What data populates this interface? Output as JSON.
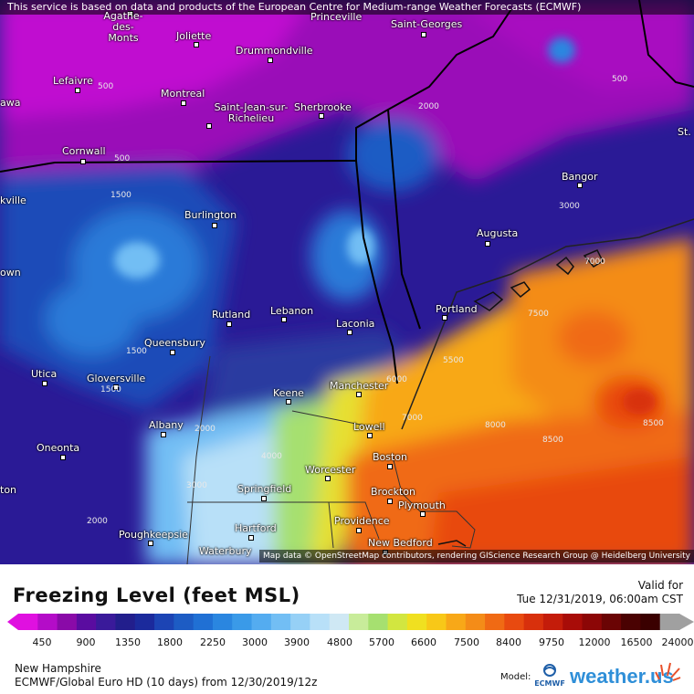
{
  "header": {
    "attribution": "This service is based on data and products of the European Centre for Medium-range Weather Forecasts (ECMWF)"
  },
  "map": {
    "attribution": "Map data © OpenStreetMap contributors, rendering GIScience Research Group @ Heidelberg University",
    "cities": [
      "Agathe-des-Monts",
      "Joliette",
      "Princeville",
      "Saint-Georges",
      "Drummondville",
      "Lefaivre",
      "Montreal",
      "Saint-Jean-sur-Richelieu",
      "Sherbrooke",
      "Cornwall",
      "Bangor",
      "Burlington",
      "Augusta",
      "Rutland",
      "Lebanon",
      "Laconia",
      "Portland",
      "Queensbury",
      "Utica",
      "Gloversville",
      "Keene",
      "Manchester",
      "Albany",
      "Lowell",
      "Oneonta",
      "Boston",
      "Worcester",
      "Springfield",
      "Brockton",
      "Plymouth",
      "Hartford",
      "Providence",
      "Poughkeepsie",
      "Waterbury",
      "New Bedford",
      "awa",
      "kville",
      "own",
      "ton",
      "St."
    ],
    "contour_labels": [
      "500",
      "500",
      "1500",
      "2000",
      "1500",
      "1500",
      "3000",
      "4000",
      "6000",
      "5500",
      "7000",
      "7500",
      "7000",
      "8000",
      "8500",
      "8500",
      "2000",
      "3000",
      "2000",
      "500"
    ]
  },
  "legend": {
    "title": "Freezing Level (feet MSL)",
    "valid_label": "Valid for",
    "valid_time": "Tue 12/31/2019, 06:00am CST",
    "ticks": [
      "450",
      "900",
      "1350",
      "1800",
      "2250",
      "3000",
      "3900",
      "4800",
      "5700",
      "6600",
      "7500",
      "8400",
      "9750",
      "12000",
      "16500",
      "24000"
    ],
    "colors": [
      "#e010e0",
      "#b40cc8",
      "#8a0aa8",
      "#5a0ca0",
      "#3a1a9a",
      "#221e8c",
      "#1b2a9c",
      "#1c44b4",
      "#1d5cc4",
      "#2070d4",
      "#2a86e0",
      "#3a9ae8",
      "#54acf0",
      "#72bef4",
      "#96d0f6",
      "#b8e0f8",
      "#cfe8f4",
      "#c8ec9a",
      "#a6e070",
      "#d2e640",
      "#f0e020",
      "#f8c818",
      "#f8a818",
      "#f48c18",
      "#f06a14",
      "#e84a10",
      "#d8300c",
      "#c41c0a",
      "#a80c08",
      "#8c0606",
      "#6a0404",
      "#4a0202",
      "#3a0000",
      "#a0a0a0"
    ]
  },
  "footer": {
    "region": "New Hampshire",
    "model_run": "ECMWF/Global Euro HD (10 days) from 12/30/2019/12z",
    "model_label": "Model:",
    "model_logo_text": "ECMWF",
    "brand": "weather.us"
  }
}
